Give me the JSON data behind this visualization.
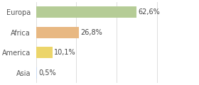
{
  "categories": [
    "Europa",
    "Africa",
    "America",
    "Asia"
  ],
  "values": [
    62.6,
    26.8,
    10.1,
    0.5
  ],
  "labels": [
    "62,6%",
    "26,8%",
    "10,1%",
    "0,5%"
  ],
  "bar_colors": [
    "#b5cc96",
    "#e8b882",
    "#ecd56a",
    "#c8daf0"
  ],
  "background_color": "#ffffff",
  "xlim": [
    0,
    100
  ],
  "bar_height": 0.55,
  "label_fontsize": 7.0,
  "category_fontsize": 7.0,
  "grid_color": "#dddddd"
}
